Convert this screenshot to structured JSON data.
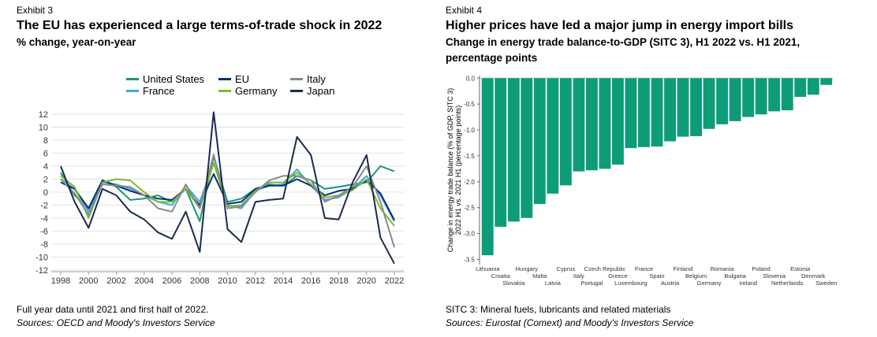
{
  "left": {
    "exhibit": "Exhibit 3",
    "title": "The EU has experienced a large terms-of-trade shock in 2022",
    "subtitle": "% change, year-on-year",
    "note": "Full year data until 2021 and first half of 2022.",
    "sources": "Sources: OECD and Moody's Investors Service"
  },
  "right": {
    "exhibit": "Exhibit 4",
    "title": "Higher prices have led a major jump in energy import bills",
    "subtitle_line1": "Change in energy trade balance-to-GDP (SITC 3), H1 2022 vs. H1 2021,",
    "subtitle_line2": "percentage points",
    "note": "SITC 3: Mineral fuels, lubricants and related materials",
    "sources": "Sources: Eurostat (Comext) and Moody's Investors Service"
  },
  "chart_data": [
    {
      "type": "line",
      "x": [
        1998,
        1999,
        2000,
        2001,
        2002,
        2003,
        2004,
        2005,
        2006,
        2007,
        2008,
        2009,
        2010,
        2011,
        2012,
        2013,
        2014,
        2015,
        2016,
        2017,
        2018,
        2019,
        2020,
        2021,
        2022
      ],
      "xticks": [
        "1998",
        "2000",
        "2002",
        "2004",
        "2006",
        "2008",
        "2010",
        "2012",
        "2014",
        "2016",
        "2018",
        "2020",
        "2022"
      ],
      "ylim": [
        -12,
        12
      ],
      "yticks": [
        12,
        10,
        8,
        6,
        4,
        2,
        0,
        -2,
        -4,
        -6,
        -8,
        -10,
        -12
      ],
      "grid": true,
      "legend_position": "top",
      "series": [
        {
          "name": "United States",
          "color": "#17977a",
          "values": [
            3.0,
            -0.5,
            -2.5,
            1.8,
            0.8,
            -1.2,
            -1.0,
            -0.5,
            -1.5,
            0.5,
            -4.5,
            5.5,
            -1.5,
            -1.0,
            0.5,
            1.2,
            1.0,
            2.5,
            1.8,
            0.5,
            0.8,
            1.2,
            1.5,
            4.0,
            3.2
          ]
        },
        {
          "name": "France",
          "color": "#3fa9dc",
          "values": [
            2.0,
            0.5,
            -3.0,
            1.5,
            1.2,
            0.5,
            -0.5,
            -1.5,
            -2.0,
            1.0,
            -1.5,
            4.5,
            -2.0,
            -2.5,
            0.2,
            1.0,
            1.2,
            3.5,
            1.0,
            -1.2,
            -0.8,
            0.5,
            2.5,
            -0.5,
            -4.5
          ]
        },
        {
          "name": "EU",
          "color": "#0b2d7a",
          "values": [
            1.5,
            0.5,
            -2.5,
            1.8,
            1.0,
            0.2,
            -0.5,
            -1.0,
            -1.2,
            0.5,
            -2.0,
            2.8,
            -1.8,
            -1.5,
            0.5,
            1.0,
            1.0,
            2.0,
            1.0,
            -0.5,
            0.2,
            0.5,
            1.8,
            -0.2,
            -4.3
          ]
        },
        {
          "name": "Germany",
          "color": "#7cbb2e",
          "values": [
            2.5,
            0.8,
            -4.0,
            1.5,
            2.0,
            1.8,
            0.0,
            -1.5,
            -1.5,
            0.5,
            -2.5,
            4.5,
            -2.2,
            -2.0,
            0.2,
            1.5,
            1.5,
            3.0,
            1.2,
            -0.8,
            -0.5,
            0.3,
            2.0,
            -2.5,
            -5.2
          ]
        },
        {
          "name": "Italy",
          "color": "#8a8a8a",
          "values": [
            2.0,
            -0.2,
            -3.5,
            1.2,
            1.0,
            0.8,
            -0.5,
            -2.5,
            -3.0,
            1.2,
            -2.5,
            5.8,
            -2.5,
            -2.2,
            0.0,
            1.8,
            2.5,
            2.5,
            1.8,
            -1.5,
            -0.5,
            0.8,
            4.0,
            -1.5,
            -8.5
          ]
        },
        {
          "name": "Japan",
          "color": "#1a2b4d",
          "values": [
            4.0,
            -1.5,
            -5.5,
            0.5,
            -0.5,
            -3.0,
            -4.2,
            -6.2,
            -7.2,
            -3.0,
            -9.2,
            12.3,
            -5.7,
            -7.7,
            -1.5,
            -1.2,
            -1.0,
            8.5,
            5.7,
            -4.0,
            -4.2,
            1.5,
            5.7,
            -7.0,
            -11.0
          ]
        }
      ]
    },
    {
      "type": "bar",
      "ylabel_line1": "Change in energy trade balance (% of GDP, SITC 3)",
      "ylabel_line2": "2022 H1 vs. 2021 H1 (percentage points)",
      "ylim": [
        -3.6,
        0.05
      ],
      "yticks": [
        0.0,
        -0.5,
        -1.0,
        -1.5,
        -2.0,
        -2.5,
        -3.0,
        -3.5
      ],
      "ytick_labels": [
        "0.0",
        "-0.5",
        "-1.0",
        "-1.5",
        "-2.0",
        "-2.5",
        "-3.0",
        "-3.5"
      ],
      "bar_color": "#0d9c78",
      "categories": [
        "Lithuania",
        "Croatia",
        "Slovakia",
        "Hungary",
        "Malta",
        "Latvia",
        "Cyprus",
        "Italy",
        "Portugal",
        "Czech Republic",
        "Greece",
        "Luxembourg",
        "France",
        "Spain",
        "Austria",
        "Finland",
        "Belgium",
        "Germany",
        "Romania",
        "Bulgaria",
        "Ireland",
        "Poland",
        "Slovenia",
        "Netherlands",
        "Estonia",
        "Denmark",
        "Sweden"
      ],
      "values": [
        -3.42,
        -2.87,
        -2.77,
        -2.7,
        -2.43,
        -2.23,
        -2.07,
        -1.8,
        -1.78,
        -1.75,
        -1.67,
        -1.35,
        -1.33,
        -1.32,
        -1.22,
        -1.13,
        -1.12,
        -0.98,
        -0.89,
        -0.83,
        -0.75,
        -0.7,
        -0.64,
        -0.62,
        -0.36,
        -0.32,
        -0.13
      ]
    }
  ]
}
